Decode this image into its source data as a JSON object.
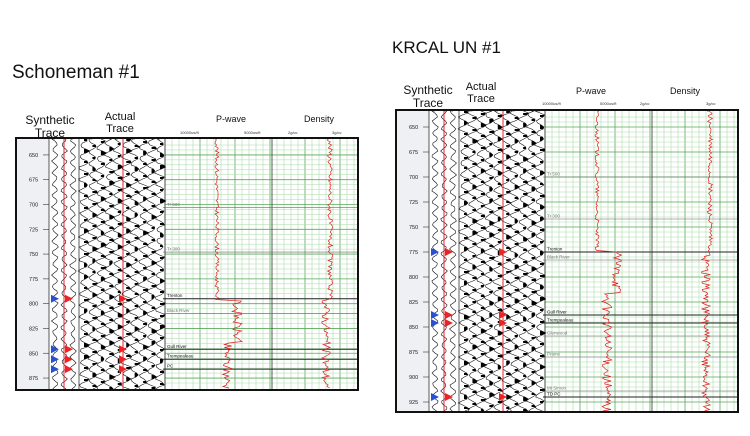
{
  "panels": [
    {
      "title": "Schoneman #1",
      "col_labels": {
        "synthetic": "Synthetic Trace",
        "actual": "Actual Trace",
        "pwave": "P-wave",
        "density": "Density"
      },
      "pwave_scale": [
        "10000us/ft",
        "5000us/ft"
      ],
      "density_scale": [
        "2g/cc",
        "3g/cc"
      ],
      "depths": [
        "650",
        "675",
        "700",
        "725",
        "750",
        "775",
        "800",
        "825",
        "850",
        "875"
      ],
      "horizons": [
        {
          "name": "Tr 500",
          "depth": 703
        },
        {
          "name": "Tr 300",
          "depth": 748
        },
        {
          "name": "Trenton",
          "depth": 795
        },
        {
          "name": "Black River",
          "depth": 810
        },
        {
          "name": "Gull River",
          "depth": 846
        },
        {
          "name": "Trempealeau",
          "depth": 856
        },
        {
          "name": "PC",
          "depth": 866
        }
      ]
    },
    {
      "title": "KRCAL UN #1",
      "col_labels": {
        "synthetic": "Synthetic Trace",
        "actual": "Actual Trace",
        "pwave": "P-wave",
        "density": "Density"
      },
      "pwave_scale": [
        "10000us/ft",
        "5000us/ft"
      ],
      "density_scale": [
        "2g/cc",
        "3g/cc"
      ],
      "depths": [
        "650",
        "675",
        "700",
        "725",
        "750",
        "775",
        "800",
        "825",
        "850",
        "875",
        "900",
        "925"
      ],
      "horizons": [
        {
          "name": "Tr 500",
          "depth": 700
        },
        {
          "name": "Tr 300",
          "depth": 742
        },
        {
          "name": "Trenton",
          "depth": 775
        },
        {
          "name": "Black River",
          "depth": 783
        },
        {
          "name": "Gull River",
          "depth": 838
        },
        {
          "name": "Trempealeau",
          "depth": 846
        },
        {
          "name": "Glenwood",
          "depth": 859
        },
        {
          "name": "Prairie",
          "depth": 880
        },
        {
          "name": "Mt Simon",
          "depth": 914
        },
        {
          "name": "TD PC",
          "depth": 920
        }
      ]
    }
  ]
}
